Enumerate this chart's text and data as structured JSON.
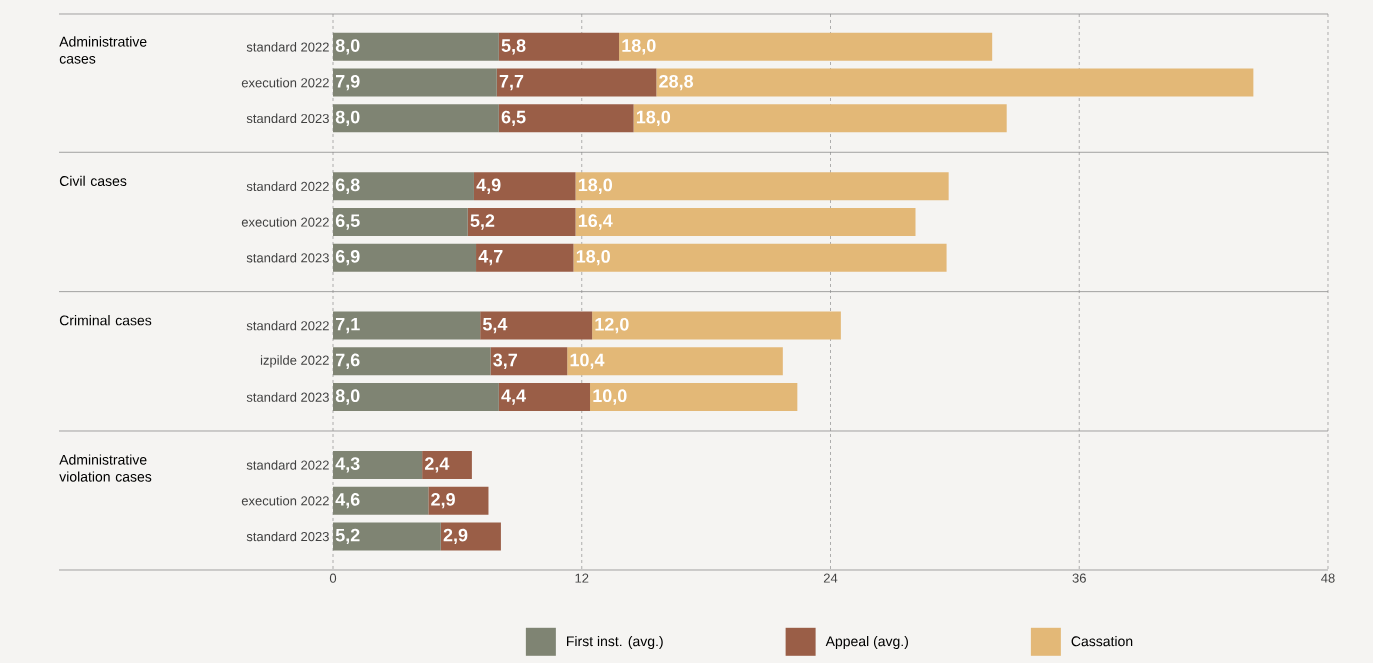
{
  "chart_data": {
    "type": "bar",
    "orientation": "horizontal",
    "stacked": true,
    "categories": [
      "standard 2022",
      "execution 2022",
      "standard 2023",
      "standard 2022",
      "execution 2022",
      "standard 2023",
      "standard 2022",
      "izpilde 2022",
      "standard 2023",
      "standard 2022",
      "execution 2022",
      "standard 2023"
    ],
    "series": [
      {
        "name": "First inst. (avg.)",
        "color": "#7f8473",
        "values": [
          8.0,
          7.9,
          8.0,
          6.8,
          6.5,
          6.9,
          7.1,
          7.6,
          8.0,
          4.3,
          4.6,
          5.2
        ],
        "value_labels": [
          "8,0",
          "7,9",
          "8,0",
          "6,8",
          "6,5",
          "6,9",
          "7,1",
          "7,6",
          "8,0",
          "4,3",
          "4,6",
          "5,2"
        ]
      },
      {
        "name": "Appeal (avg.)",
        "color": "#9a5e47",
        "values": [
          5.8,
          7.7,
          6.5,
          4.9,
          5.2,
          4.7,
          5.4,
          3.7,
          4.4,
          2.4,
          2.9,
          2.9
        ],
        "value_labels": [
          "5,8",
          "7,7",
          "6,5",
          "4,9",
          "5,2",
          "4,7",
          "5,4",
          "3,7",
          "4,4",
          "2,4",
          "2,9",
          "2,9"
        ]
      },
      {
        "name": "Cassation",
        "color": "#e3b877",
        "values": [
          18.0,
          28.8,
          18.0,
          18.0,
          16.4,
          18.0,
          12.0,
          10.4,
          10.0,
          null,
          null,
          null
        ],
        "value_labels": [
          "18,0",
          "28,8",
          "18,0",
          "18,0",
          "16,4",
          "18,0",
          "12,0",
          "10,4",
          "10,0",
          null,
          null,
          null
        ]
      }
    ],
    "annotations": [
      "Administrative cases",
      "Civil cases",
      "Criminal cases",
      "Administrative violation cases"
    ],
    "xlim": [
      0,
      48
    ],
    "xticks": [
      0,
      12,
      24,
      36,
      48
    ],
    "grid": "x",
    "legend": "bottom"
  }
}
